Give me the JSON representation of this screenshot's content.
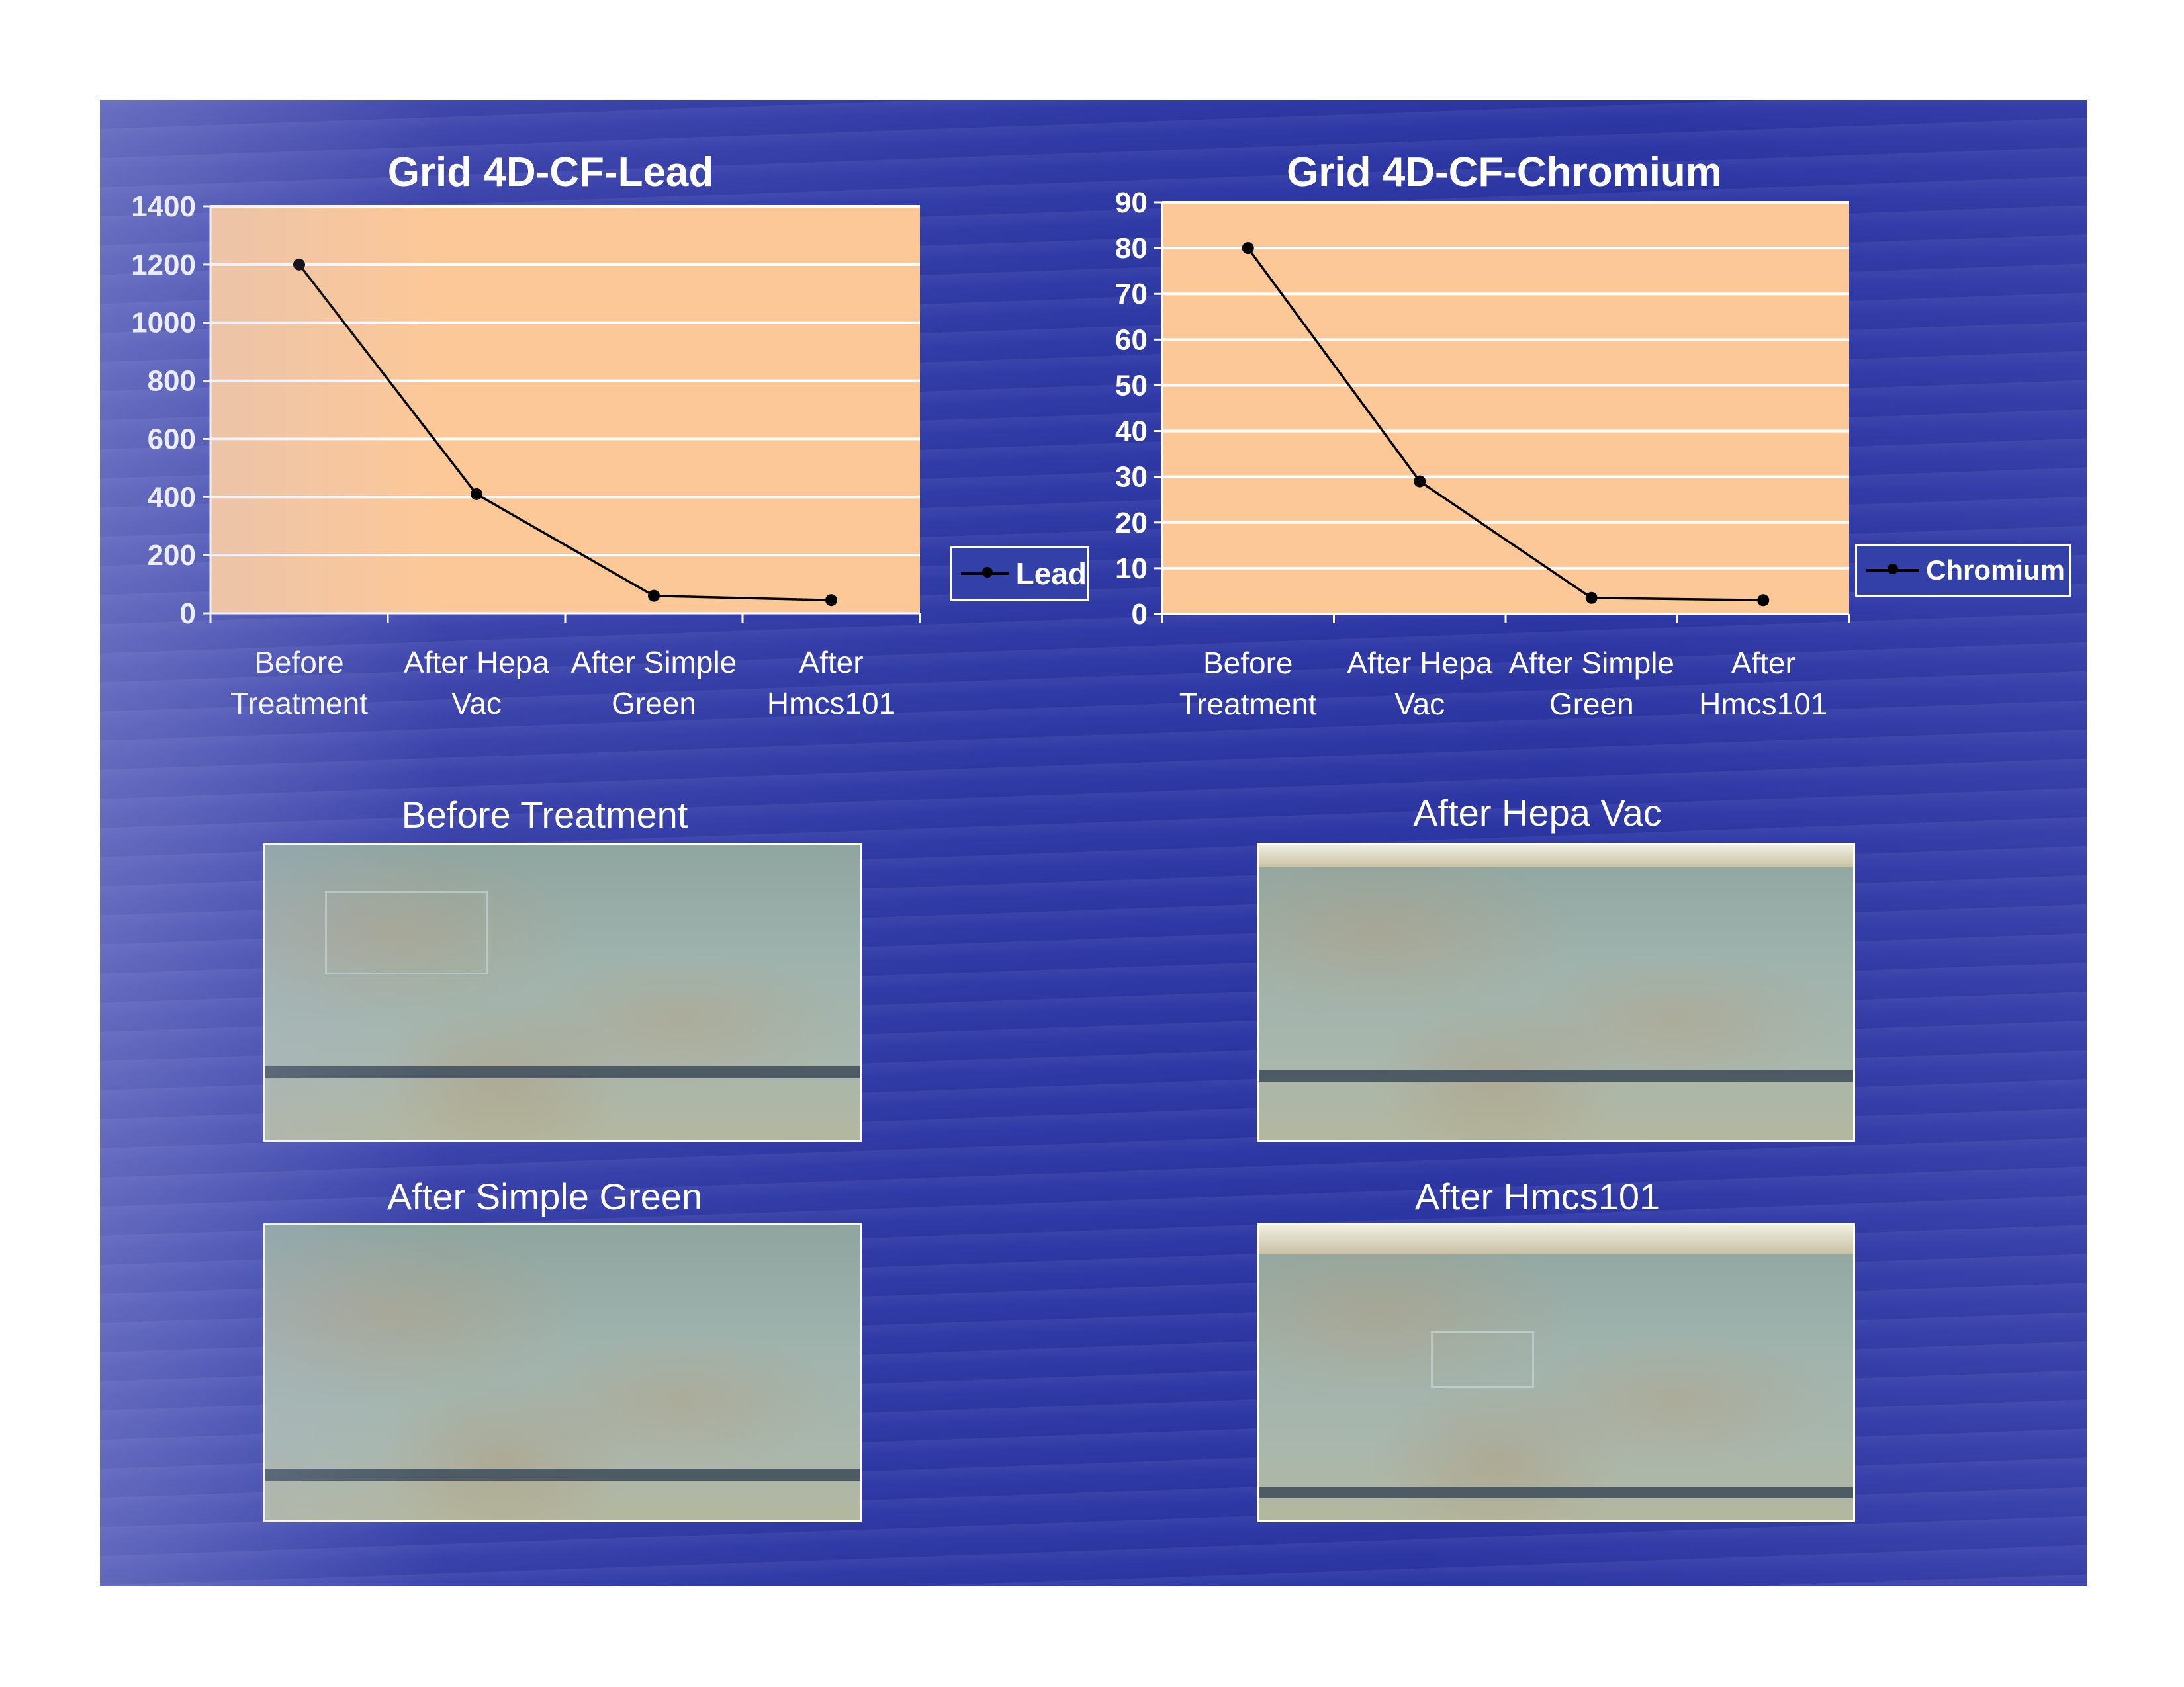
{
  "chart_data": [
    {
      "type": "line",
      "title": "Grid 4D-CF-Lead",
      "categories": [
        "Before Treatment",
        "After Hepa Vac",
        "After Simple Green",
        "After Hmcs101"
      ],
      "category_lines": [
        [
          "Before",
          "Treatment"
        ],
        [
          "After Hepa",
          "Vac"
        ],
        [
          "After Simple",
          "Green"
        ],
        [
          "After",
          "Hmcs101"
        ]
      ],
      "series": [
        {
          "name": "Lead",
          "values": [
            1200,
            410,
            60,
            45
          ]
        }
      ],
      "ylim": [
        0,
        1400
      ],
      "yticks": [
        0,
        200,
        400,
        600,
        800,
        1000,
        1200,
        1400
      ],
      "xlabel": "",
      "ylabel": "",
      "grid": true,
      "legend": "right"
    },
    {
      "type": "line",
      "title": "Grid 4D-CF-Chromium",
      "categories": [
        "Before Treatment",
        "After Hepa Vac",
        "After Simple Green",
        "After Hmcs101"
      ],
      "category_lines": [
        [
          "Before",
          "Treatment"
        ],
        [
          "After Hepa",
          "Vac"
        ],
        [
          "After Simple",
          "Green"
        ],
        [
          "After",
          "Hmcs101"
        ]
      ],
      "series": [
        {
          "name": "Chromium",
          "values": [
            80,
            29,
            3.5,
            3
          ]
        }
      ],
      "ylim": [
        0,
        90
      ],
      "yticks": [
        0,
        10,
        20,
        30,
        40,
        50,
        60,
        70,
        80,
        90
      ],
      "xlabel": "",
      "ylabel": "",
      "grid": true,
      "legend": "right"
    }
  ],
  "photos": [
    {
      "caption": "Before Treatment"
    },
    {
      "caption": "After Hepa Vac"
    },
    {
      "caption": "After Simple Green"
    },
    {
      "caption": "After Hmcs101"
    }
  ],
  "colors": {
    "plot_background": "#fdc898",
    "gridline": "#ffffff",
    "line": "#000000",
    "slide_background": "#2f3aa6"
  }
}
